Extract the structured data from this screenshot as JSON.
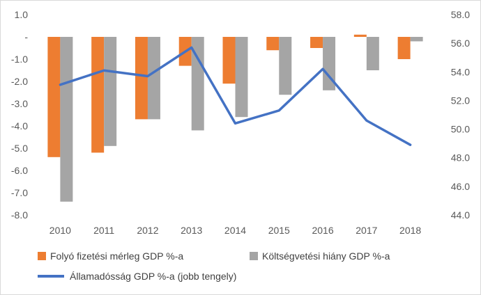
{
  "chart_data": {
    "type": "bar",
    "categories": [
      "2010",
      "2011",
      "2012",
      "2013",
      "2014",
      "2015",
      "2016",
      "2017",
      "2018"
    ],
    "series": [
      {
        "name": "Folyó fizetési mérleg GDP %-a",
        "kind": "bar",
        "axis": "left",
        "color": "#ED7D31",
        "values": [
          -5.4,
          -5.2,
          -3.7,
          -1.3,
          -2.1,
          -0.6,
          -0.5,
          0.1,
          -1.0
        ]
      },
      {
        "name": "Költségvetési hiány GDP %-a",
        "kind": "bar",
        "axis": "left",
        "color": "#A5A5A5",
        "values": [
          -7.4,
          -4.9,
          -3.7,
          -4.2,
          -3.6,
          -2.6,
          -2.4,
          -1.5,
          -0.2
        ]
      },
      {
        "name": "Államadósság GDP %-a (jobb tengely)",
        "kind": "line",
        "axis": "right",
        "color": "#4472C4",
        "values": [
          53.1,
          54.1,
          53.7,
          55.7,
          50.4,
          51.3,
          54.2,
          50.6,
          48.9
        ]
      }
    ],
    "left_axis": {
      "ylim": [
        -8.0,
        1.0
      ],
      "ticks": [
        "1.0",
        "-",
        "-1.0",
        "-2.0",
        "-3.0",
        "-4.0",
        "-5.0",
        "-6.0",
        "-7.0",
        "-8.0"
      ]
    },
    "right_axis": {
      "ylim": [
        44.0,
        58.0
      ],
      "ticks": [
        "58.0",
        "56.0",
        "54.0",
        "52.0",
        "50.0",
        "48.0",
        "46.0",
        "44.0"
      ]
    },
    "grid": false,
    "legend_position": "bottom"
  }
}
